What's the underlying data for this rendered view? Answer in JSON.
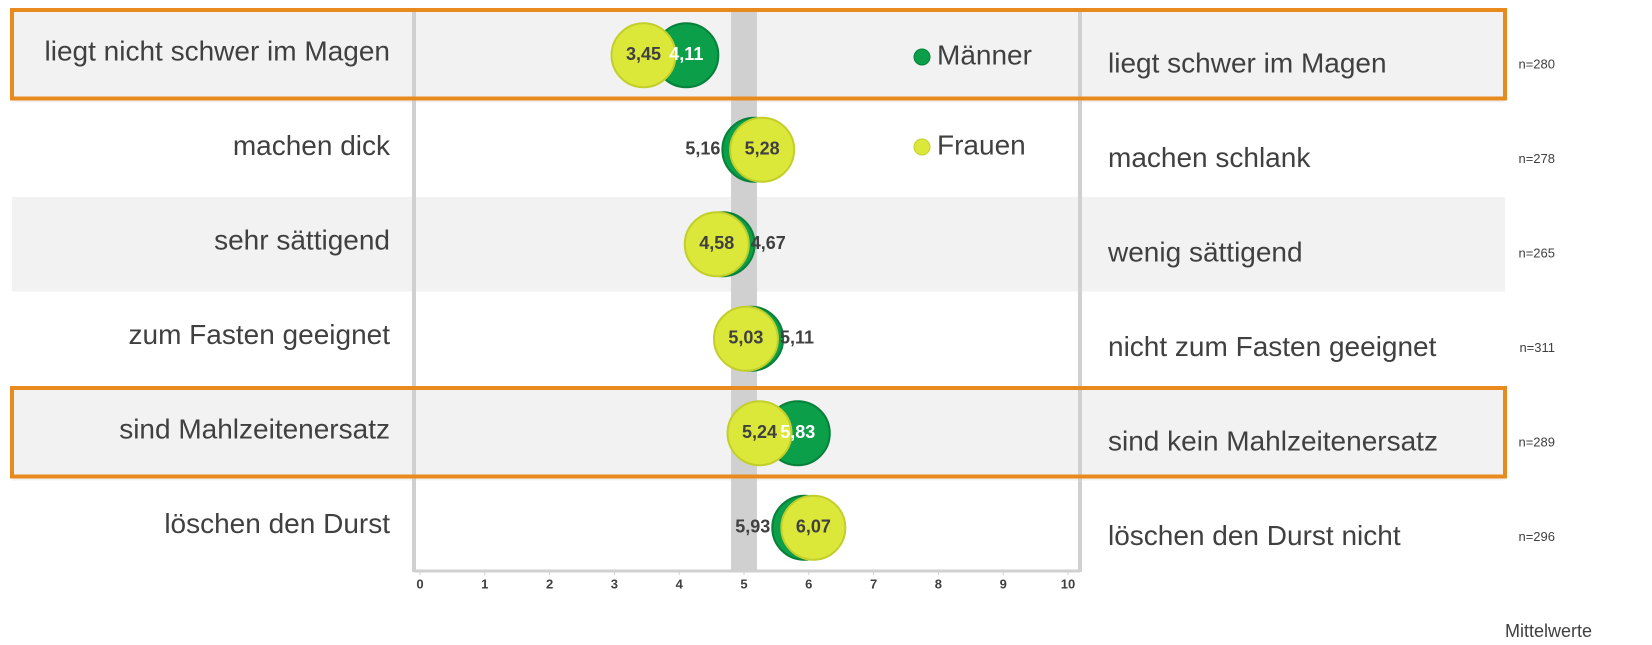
{
  "chart_data": {
    "type": "dot",
    "categories": [
      "liegt nicht schwer im Magen",
      "machen dick",
      "sehr sättigend",
      "zum Fasten geeignet",
      "sind Mahlzeitenersatz",
      "löschen den Durst"
    ],
    "right_labels": [
      "liegt schwer im Magen",
      "machen schlank",
      "wenig sättigend",
      "nicht zum Fasten geeignet",
      "sind kein Mahlzeitenersatz",
      "löschen den Durst nicht"
    ],
    "n_labels": [
      "n=280",
      "n=278",
      "n=265",
      "n=311",
      "n=289",
      "n=296"
    ],
    "series": [
      {
        "name": "Männer",
        "color": "#0a9f48",
        "values": [
          4.11,
          5.16,
          4.67,
          5.11,
          5.83,
          5.93
        ],
        "value_labels": [
          "4,11",
          "5,16",
          "4,67",
          "5,11",
          "5,83",
          "5,93"
        ]
      },
      {
        "name": "Frauen",
        "color": "#dbe83a",
        "values": [
          3.45,
          5.28,
          4.58,
          5.03,
          5.24,
          6.07
        ],
        "value_labels": [
          "3,45",
          "5,28",
          "4,58",
          "5,03",
          "5,24",
          "6,07"
        ]
      }
    ],
    "xlim": [
      0,
      10
    ],
    "xticks": [
      0,
      1,
      2,
      3,
      4,
      5,
      6,
      7,
      8,
      9,
      10
    ],
    "highlight_rows": [
      0,
      4
    ],
    "note": "Mittelwerte"
  }
}
